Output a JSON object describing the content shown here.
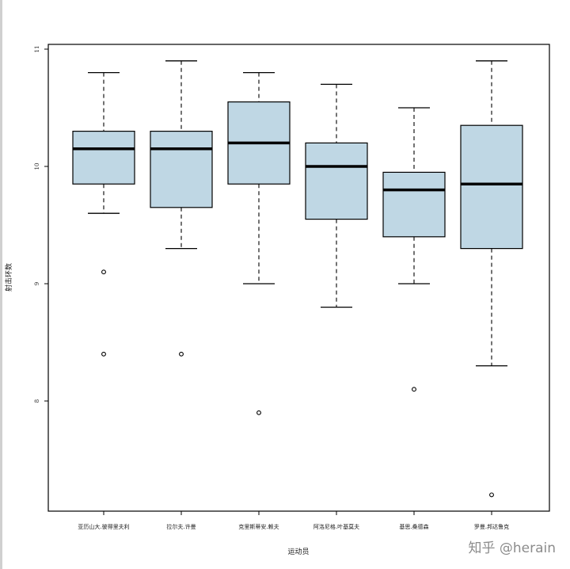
{
  "chart_data": {
    "type": "boxplot",
    "xlabel": "运动员",
    "ylabel": "射击环数",
    "ylim": [
      7,
      11
    ],
    "yticks": [
      "8",
      "9",
      "10",
      "11"
    ],
    "box_color": "#bfd7e4",
    "grid": false,
    "categories": [
      "亚历山大.彼得里夫利",
      "拉尔夫.许曼",
      "克里斯蒂安.赖夫",
      "阿洛尼格.叶基莫夫",
      "基思.桑德森",
      "罗曼.邦达鲁克"
    ],
    "series": [
      {
        "min": 9.6,
        "q1": 9.85,
        "median": 10.15,
        "q3": 10.3,
        "max": 10.8,
        "outliers": [
          9.1,
          8.4
        ]
      },
      {
        "min": 9.3,
        "q1": 9.65,
        "median": 10.15,
        "q3": 10.3,
        "max": 10.9,
        "outliers": [
          8.4
        ]
      },
      {
        "min": 9.0,
        "q1": 9.85,
        "median": 10.2,
        "q3": 10.55,
        "max": 10.8,
        "outliers": [
          7.9
        ]
      },
      {
        "min": 8.8,
        "q1": 9.55,
        "median": 10.0,
        "q3": 10.2,
        "max": 10.7,
        "outliers": []
      },
      {
        "min": 9.0,
        "q1": 9.4,
        "median": 9.8,
        "q3": 9.95,
        "max": 10.5,
        "outliers": [
          8.1
        ]
      },
      {
        "min": 8.3,
        "q1": 9.3,
        "median": 9.85,
        "q3": 10.35,
        "max": 10.9,
        "outliers": [
          7.2
        ]
      }
    ]
  },
  "watermark": "知乎 @herain"
}
